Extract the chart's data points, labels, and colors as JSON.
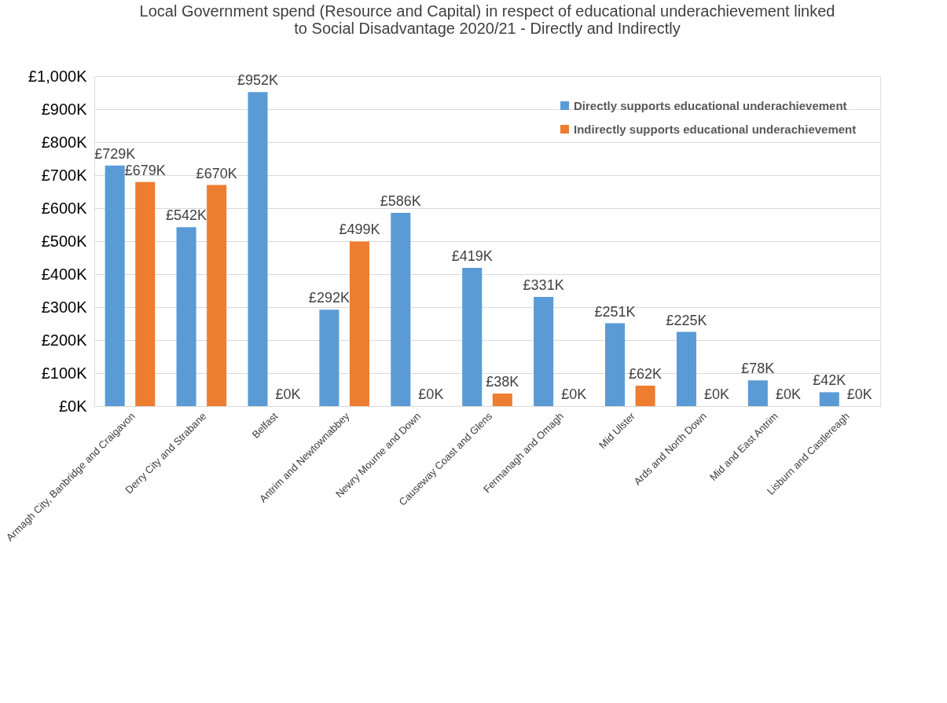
{
  "chart_data": {
    "type": "bar",
    "title": "Local Government spend (Resource and Capital) in respect of educational underachievement linked to Social Disadvantage 2020/21 - Directly and Indirectly",
    "categories": [
      "Armagh City, Banbridge and Craigavon",
      "Derry City and Strabane",
      "Belfast",
      "Antrim and Newtownabbey",
      "Newry Mourne and Down",
      "Causeway Coast and Glens",
      "Fermanagh and Omagh",
      "Mid Ulster",
      "Ards and North Down",
      "Mid and East Antrim",
      "Lisburn and Castlereagh"
    ],
    "series": [
      {
        "name": "Directly supports educational underachievement",
        "color": "#5b9bd5",
        "values": [
          729,
          542,
          952,
          292,
          586,
          419,
          331,
          251,
          225,
          78,
          42
        ],
        "value_labels": [
          "£729K",
          "£542K",
          "£952K",
          "£292K",
          "£586K",
          "£419K",
          "£331K",
          "£251K",
          "£225K",
          "£78K",
          "£42K"
        ]
      },
      {
        "name": "Indirectly supports educational underachievement",
        "color": "#ed7d31",
        "values": [
          679,
          670,
          0,
          499,
          0,
          38,
          0,
          62,
          0,
          0,
          0
        ],
        "value_labels": [
          "£679K",
          "£670K",
          "£0K",
          "£499K",
          "£0K",
          "£38K",
          "£0K",
          "£62K",
          "£0K",
          "£0K",
          "£0K"
        ]
      }
    ],
    "ylim": [
      0,
      1000
    ],
    "yticks": [
      {
        "value": 0,
        "label": "£0K"
      },
      {
        "value": 100,
        "label": "£100K"
      },
      {
        "value": 200,
        "label": "£200K"
      },
      {
        "value": 300,
        "label": "£300K"
      },
      {
        "value": 400,
        "label": "£400K"
      },
      {
        "value": 500,
        "label": "£500K"
      },
      {
        "value": 600,
        "label": "£600K"
      },
      {
        "value": 700,
        "label": "£700K"
      },
      {
        "value": 800,
        "label": "£800K"
      },
      {
        "value": 900,
        "label": "£900K"
      },
      {
        "value": 1000,
        "label": "£1,000K"
      }
    ],
    "grid": "y",
    "legend": "top right"
  }
}
